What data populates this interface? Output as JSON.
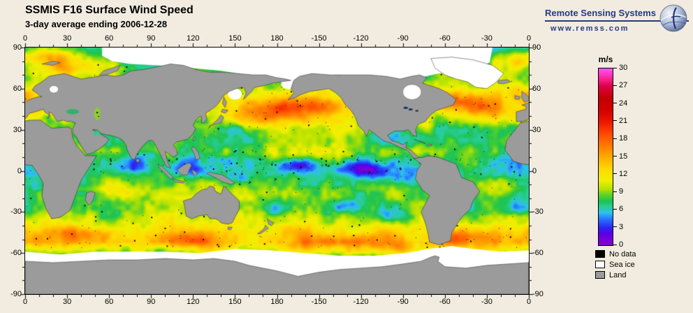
{
  "header": {
    "title": "SSMIS F16 Surface Wind Speed",
    "subtitle": "3-day average ending 2006-12-28"
  },
  "branding": {
    "name": "Remote Sensing Systems",
    "url": "www.remss.com",
    "accent_color": "#253a84"
  },
  "map": {
    "projection": "equirectangular global, longitude 0-360E, latitude 90N-90S",
    "lon_labels": [
      "0",
      "30",
      "60",
      "90",
      "120",
      "150",
      "180",
      "-150",
      "-120",
      "-90",
      "-60",
      "-30",
      "0"
    ],
    "lat_labels": [
      "90",
      "60",
      "30",
      "0",
      "-30",
      "-60",
      "-90"
    ]
  },
  "colorbar": {
    "unit": "m/s",
    "min": 0,
    "max": 30,
    "tick_values": [
      0,
      3,
      6,
      9,
      12,
      15,
      18,
      21,
      24,
      27,
      30
    ],
    "stops": [
      {
        "v": 0,
        "color": "#8c00c8"
      },
      {
        "v": 2,
        "color": "#5a00e6"
      },
      {
        "v": 3,
        "color": "#2828f0"
      },
      {
        "v": 4.5,
        "color": "#2878ff"
      },
      {
        "v": 5.5,
        "color": "#2dc0f0"
      },
      {
        "v": 6.5,
        "color": "#28cd96"
      },
      {
        "v": 7.5,
        "color": "#1ec350"
      },
      {
        "v": 8.5,
        "color": "#5ad228"
      },
      {
        "v": 9.5,
        "color": "#b4e100"
      },
      {
        "v": 11,
        "color": "#f0f000"
      },
      {
        "v": 13,
        "color": "#ffd700"
      },
      {
        "v": 15,
        "color": "#ffaa00"
      },
      {
        "v": 17,
        "color": "#ff7800"
      },
      {
        "v": 19,
        "color": "#ff4600"
      },
      {
        "v": 21,
        "color": "#eb1400"
      },
      {
        "v": 23,
        "color": "#d20000"
      },
      {
        "v": 25,
        "color": "#c30000"
      },
      {
        "v": 27,
        "color": "#dc0046"
      },
      {
        "v": 28.5,
        "color": "#ff28a0"
      },
      {
        "v": 30,
        "color": "#ff55ff"
      }
    ]
  },
  "legend": [
    {
      "label": "No data",
      "color": "#000000"
    },
    {
      "label": "Sea ice",
      "color": "#ffffff"
    },
    {
      "label": "Land",
      "color": "#9b9b9b"
    }
  ],
  "chart_data": {
    "type": "heatmap",
    "title": "SSMIS F16 Surface Wind Speed",
    "subtitle": "3-day average ending 2006-12-28",
    "units": "m/s",
    "value_range": [
      0,
      30
    ],
    "colorbar_ticks": [
      0,
      3,
      6,
      9,
      12,
      15,
      18,
      21,
      24,
      27,
      30
    ],
    "lon_axis_deg": [
      0,
      30,
      60,
      90,
      120,
      150,
      180,
      -150,
      -120,
      -90,
      -60,
      -30,
      0
    ],
    "lat_axis_deg": [
      90,
      60,
      30,
      0,
      -30,
      -60,
      -90
    ],
    "special_values": {
      "no_data": "black",
      "sea_ice": "white",
      "land": "gray"
    }
  }
}
